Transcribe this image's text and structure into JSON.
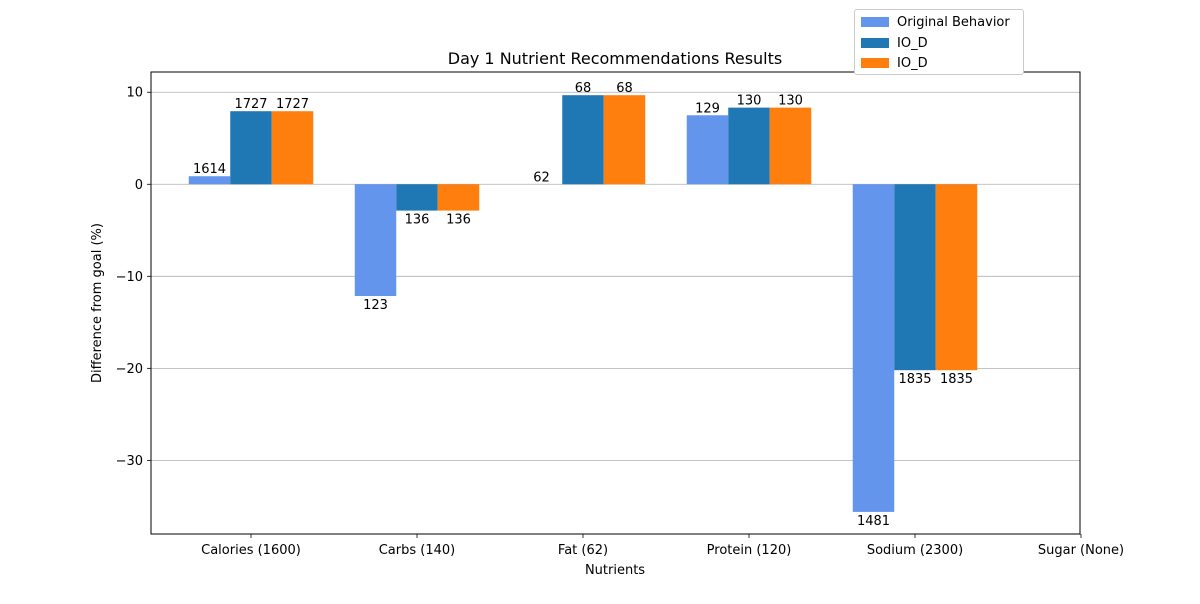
{
  "chart_data": {
    "type": "bar",
    "title": "Day 1 Nutrient Recommendations Results",
    "xlabel": "Nutrients",
    "ylabel": "Difference from goal (%)",
    "categories": [
      "Calories (1600)",
      "Carbs (140)",
      "Fat (62)",
      "Protein (120)",
      "Sodium (2300)",
      "Sugar (None)"
    ],
    "ylim": [
      -38,
      12.2
    ],
    "yticks": [
      10,
      0,
      -10,
      -20,
      -30
    ],
    "ytick_labels": [
      "10",
      "0",
      "−10",
      "−20",
      "−30"
    ],
    "grid": "horizontal",
    "legend_position": "top-right",
    "series": [
      {
        "name": "Original Behavior",
        "color": "#6495ed",
        "values": [
          0.875,
          -12.14,
          0.0,
          7.5,
          -35.6,
          null
        ],
        "labels": [
          "1614",
          "123",
          "62",
          "129",
          "1481",
          ""
        ]
      },
      {
        "name": "IO_D",
        "color": "#1f77b4",
        "values": [
          7.94,
          -2.86,
          9.68,
          8.33,
          -20.2,
          null
        ],
        "labels": [
          "1727",
          "136",
          "68",
          "130",
          "1835",
          ""
        ]
      },
      {
        "name": "IO_D",
        "color": "#ff7f0e",
        "values": [
          7.94,
          -2.86,
          9.68,
          8.33,
          -20.2,
          null
        ],
        "labels": [
          "1727",
          "136",
          "68",
          "130",
          "1835",
          ""
        ]
      }
    ]
  }
}
